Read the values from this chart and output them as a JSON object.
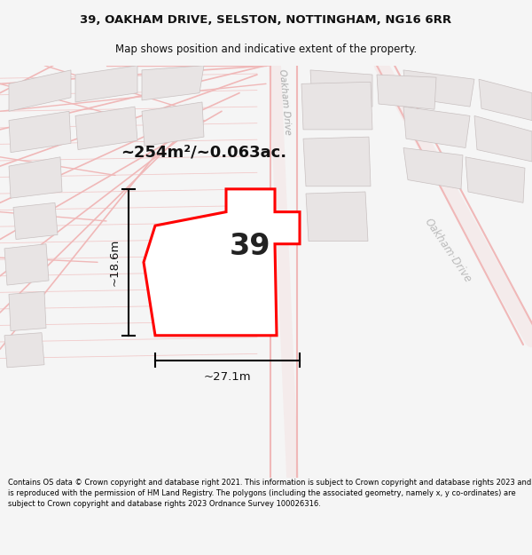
{
  "title_line1": "39, OAKHAM DRIVE, SELSTON, NOTTINGHAM, NG16 6RR",
  "title_line2": "Map shows position and indicative extent of the property.",
  "footer_text": "Contains OS data © Crown copyright and database right 2021. This information is subject to Crown copyright and database rights 2023 and is reproduced with the permission of HM Land Registry. The polygons (including the associated geometry, namely x, y co-ordinates) are subject to Crown copyright and database rights 2023 Ordnance Survey 100026316.",
  "area_label": "~254m²/~0.063ac.",
  "plot_number": "39",
  "width_label": "~27.1m",
  "height_label": "~18.6m",
  "map_bg": "#f5f2f2",
  "plot_fill": "#ffffff",
  "plot_edge": "#ff0000",
  "building_fill": "#e8e4e4",
  "building_edge": "#c8c0c0",
  "road_line_color": "#f0b8b8",
  "road_label_color": "#aaaaaa",
  "oakham_drive_label": "Oakham Drive",
  "oakham_drive_label2": "Oakham·Drive"
}
